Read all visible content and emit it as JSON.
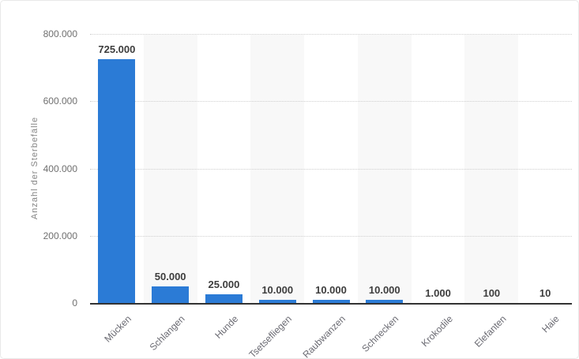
{
  "chart_data": {
    "type": "bar",
    "title": "",
    "xlabel": "",
    "ylabel": "Anzahl der Sterbefälle",
    "categories": [
      "Mücken",
      "Schlangen",
      "Hunde",
      "Tsetsefliegen",
      "Raubwanzen",
      "Schnecken",
      "Krokodile",
      "Elefanten",
      "Haie"
    ],
    "values": [
      725000,
      50000,
      25000,
      10000,
      10000,
      10000,
      1000,
      100,
      10
    ],
    "value_labels": [
      "725.000",
      "50.000",
      "25.000",
      "10.000",
      "10.000",
      "10.000",
      "1.000",
      "100",
      "10"
    ],
    "ylim": [
      0,
      800000
    ],
    "yticks": {
      "values": [
        0,
        200000,
        400000,
        600000,
        800000
      ],
      "labels": [
        "0",
        "200.000",
        "400.000",
        "600.000",
        "800.000"
      ]
    },
    "grid": "horizontal-dotted",
    "legend": "none",
    "plot_bands": "alternating-columns",
    "colors": {
      "bar": "#2b7bd6",
      "band": "#f8f8f8",
      "gridline": "#cfcfcf",
      "axis_line": "#333333",
      "value_label": "#3d3d3d",
      "tick_label": "#6f6f6f",
      "category_label": "#6a6a72",
      "axis_title": "#858585",
      "background": "#ffffff"
    }
  }
}
